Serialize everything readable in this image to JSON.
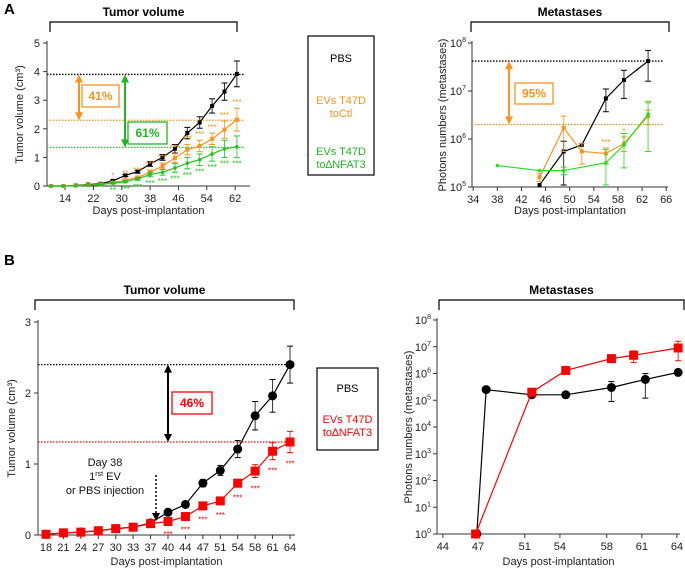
{
  "panels": [
    "A",
    "B"
  ],
  "legend_a": {
    "items": [
      {
        "lines": [
          "PBS"
        ],
        "color": "#000000"
      },
      {
        "lines": [
          "EVs T47D",
          "toCtl"
        ],
        "color": "#f7931e"
      },
      {
        "lines": [
          "EVs T47D",
          "to∆NFAT3"
        ],
        "color": "#22b522"
      }
    ]
  },
  "legend_b": {
    "items": [
      {
        "lines": [
          "PBS"
        ],
        "color": "#000000"
      },
      {
        "lines": [
          "EVs T47D",
          "to∆NFAT3"
        ],
        "color": "#ff0000"
      }
    ]
  },
  "chart_data": [
    {
      "type": "line",
      "panel": "A",
      "title": "Tumor volume",
      "xlabel": "Days post-implantation",
      "ylabel": "Tumor volume (cm³)",
      "yscale": "linear",
      "xlim": [
        8.9,
        66.2
      ],
      "ylim": [
        0,
        5
      ],
      "xticks": [
        14,
        22,
        30,
        38,
        46,
        54,
        62
      ],
      "yticks": [
        0,
        1,
        2,
        3,
        4,
        5
      ],
      "x": [
        10,
        13.5,
        17,
        20.5,
        24,
        27.5,
        31,
        34.5,
        38,
        41.5,
        45,
        48.5,
        52,
        55.5,
        59,
        62.5
      ],
      "series": [
        {
          "name": "PBS",
          "color": "#000000",
          "marker": "square",
          "values": [
            0,
            0,
            0.02,
            0.05,
            0.08,
            0.18,
            0.37,
            0.5,
            0.77,
            1.0,
            1.3,
            1.85,
            2.22,
            2.8,
            3.3,
            3.92
          ],
          "err": [
            0,
            0,
            0,
            0.01,
            0.02,
            0.03,
            0.04,
            0.05,
            0.08,
            0.1,
            0.15,
            0.2,
            0.2,
            0.25,
            0.3,
            0.45
          ]
        },
        {
          "name": "EVs T47D toCtl",
          "color": "#f7931e",
          "marker": "square",
          "values": [
            0,
            0,
            0.01,
            0.03,
            0.06,
            0.12,
            0.2,
            0.3,
            0.48,
            0.7,
            0.98,
            1.27,
            1.4,
            1.65,
            1.97,
            2.32
          ],
          "err": [
            0,
            0,
            0,
            0.01,
            0.02,
            0.03,
            0.04,
            0.05,
            0.08,
            0.1,
            0.15,
            0.18,
            0.2,
            0.2,
            0.3,
            0.4
          ],
          "stars": [
            "",
            "",
            "",
            "",
            "",
            "*",
            "**",
            "***",
            "***",
            "***",
            "***",
            "***",
            "***",
            "***",
            "***",
            "***"
          ],
          "stars_pos": "above"
        },
        {
          "name": "EVs T47D to∆NFAT3",
          "color": "#22c322",
          "marker": "dot",
          "values": [
            0,
            0,
            0.01,
            0.03,
            0.05,
            0.1,
            0.15,
            0.25,
            0.4,
            0.48,
            0.63,
            0.8,
            0.92,
            1.12,
            1.3,
            1.37
          ],
          "err": [
            0,
            0,
            0,
            0.01,
            0.02,
            0.03,
            0.04,
            0.05,
            0.08,
            0.1,
            0.15,
            0.2,
            0.2,
            0.25,
            0.3,
            0.38
          ],
          "stars": [
            "",
            "",
            "",
            "",
            "",
            "**",
            "***",
            "***",
            "***",
            "***",
            "***",
            "***",
            "***",
            "***",
            "***",
            "***"
          ],
          "stars_pos": "below"
        }
      ],
      "reference_lines": [
        {
          "value": 3.9,
          "color": "#000000"
        },
        {
          "value": 2.3,
          "color": "#f7931e"
        },
        {
          "value": 1.35,
          "color": "#22c322"
        }
      ],
      "annotations": [
        {
          "label": "41%",
          "from": 3.9,
          "to": 2.3,
          "color": "#f7931e"
        },
        {
          "label": "61%",
          "from": 3.9,
          "to": 1.35,
          "color": "#22b522"
        }
      ]
    },
    {
      "type": "line",
      "panel": "A",
      "title": "Metastases",
      "xlabel": "Days post-implantation",
      "ylabel": "Photons numbers (metastases)",
      "yscale": "log",
      "xlim": [
        33.8,
        66.3
      ],
      "ylim": [
        100000,
        100000000
      ],
      "xticks": [
        34,
        38,
        42,
        46,
        50,
        54,
        58,
        62,
        66
      ],
      "yticks_exp": [
        5,
        6,
        7,
        8
      ],
      "series": [
        {
          "name": "PBS",
          "color": "#000000",
          "marker": "square",
          "x": [
            45,
            49,
            52,
            56,
            59,
            63
          ],
          "values": [
            110000,
            550000,
            750000,
            7000000,
            17000000,
            42000000
          ],
          "range": [
            null,
            [
              110000,
              900000
            ],
            null,
            [
              3700000,
              11000000
            ],
            [
              7000000,
              27000000
            ],
            [
              16000000,
              70000000
            ]
          ]
        },
        {
          "name": "EVs T47D toCtl",
          "color": "#f7931e",
          "marker": "square",
          "x": [
            45,
            49,
            52,
            56,
            59,
            63
          ],
          "values": [
            160000,
            1700000,
            550000,
            500000,
            800000,
            3000000
          ],
          "range": [
            [
              130000,
              190000
            ],
            [
              550000,
              3000000
            ],
            [
              300000,
              800000
            ],
            [
              300000,
              650000
            ],
            [
              550000,
              1100000
            ],
            [
              2000000,
              4000000
            ]
          ],
          "stars": [
            "",
            "",
            "",
            "***",
            "*",
            "**"
          ],
          "stars_pos": "above"
        },
        {
          "name": "EVs T47D to∆NFAT3",
          "color": "#22e022",
          "marker": "dot",
          "x": [
            38,
            45,
            49,
            56,
            59,
            63
          ],
          "values": [
            280000,
            220000,
            220000,
            320000,
            750000,
            3300000
          ],
          "range": [
            null,
            null,
            [
              180000,
              260000
            ],
            [
              110000,
              600000
            ],
            [
              250000,
              1300000
            ],
            [
              550000,
              6000000
            ]
          ]
        }
      ],
      "reference_lines": [
        {
          "value": 42000000,
          "color": "#000000"
        },
        {
          "value": 2000000,
          "color": "#f7931e"
        }
      ],
      "annotations": [
        {
          "label": "95%",
          "from": 42000000,
          "to": 2000000,
          "color": "#f7931e"
        }
      ]
    },
    {
      "type": "line",
      "panel": "B",
      "title": "Tumor volume",
      "xlabel": "Days post-implantation",
      "ylabel": "Tumor volume (cm³)",
      "yscale": "linear",
      "xscale": "category",
      "ylim": [
        0,
        3
      ],
      "yticks": [
        0,
        1,
        2,
        3
      ],
      "categories": [
        "18",
        "21",
        "24",
        "27",
        "30",
        "33",
        "37",
        "40",
        "44",
        "47",
        "51",
        "54",
        "58",
        "61",
        "64"
      ],
      "series": [
        {
          "name": "PBS",
          "color": "#000000",
          "marker": "circle",
          "values": [
            0.01,
            0.03,
            0.04,
            0.06,
            0.09,
            0.11,
            0.17,
            0.32,
            0.43,
            0.73,
            0.91,
            1.21,
            1.68,
            1.96,
            2.4
          ],
          "err": [
            0,
            0.01,
            0.01,
            0.01,
            0.02,
            0.02,
            0.02,
            0.03,
            0.03,
            0.05,
            0.07,
            0.12,
            0.2,
            0.23,
            0.26
          ]
        },
        {
          "name": "EVs T47D to∆NFAT3",
          "color": "#ff0000",
          "marker": "bigsquare",
          "values": [
            0.01,
            0.03,
            0.04,
            0.06,
            0.09,
            0.11,
            0.16,
            0.19,
            0.26,
            0.41,
            0.48,
            0.73,
            0.9,
            1.18,
            1.31
          ],
          "err": [
            0,
            0.01,
            0.01,
            0.01,
            0.02,
            0.02,
            0.02,
            0.02,
            0.03,
            0.04,
            0.04,
            0.05,
            0.09,
            0.12,
            0.15
          ],
          "stars": [
            "",
            "",
            "",
            "",
            "",
            "",
            "",
            "***",
            "***",
            "***",
            "***",
            "***",
            "***",
            "***",
            "***"
          ],
          "stars_pos": "below"
        }
      ],
      "reference_lines": [
        {
          "value": 2.4,
          "color": "#000000"
        },
        {
          "value": 1.31,
          "color": "#ff0000"
        }
      ],
      "annotations": [
        {
          "label": "46%",
          "from": 2.4,
          "to": 1.31,
          "color": "#ff0000",
          "arrow_color": "#000000"
        }
      ],
      "injection_note": {
        "line1": "Day 38",
        "line2_base": "1",
        "line2_sup": "rst",
        "line2_rest": " EV",
        "line3": "or PBS injection"
      }
    },
    {
      "type": "line",
      "panel": "B",
      "title": "Metastases",
      "xlabel": "Days post-implantation",
      "ylabel": "Photons numbers (metastases)",
      "yscale": "log",
      "xlim": [
        43.5,
        64.26
      ],
      "ylim": [
        1,
        100000000
      ],
      "xticks": [
        44,
        47,
        51,
        54,
        58,
        61,
        64
      ],
      "yticks_exp": [
        0,
        1,
        2,
        3,
        4,
        5,
        6,
        7,
        8
      ],
      "series": [
        {
          "name": "PBS",
          "color": "#000000",
          "marker": "circle",
          "x": [
            46.9,
            47.7,
            51.6,
            54.5,
            58.4,
            61.3,
            64.1
          ],
          "values": [
            1,
            250000,
            160000,
            160000,
            300000,
            600000,
            1100000
          ],
          "range": [
            null,
            null,
            null,
            null,
            [
              90000,
              500000
            ],
            [
              120000,
              1000000
            ],
            null
          ]
        },
        {
          "name": "EVs T47D to∆NFAT3",
          "color": "#ff0000",
          "marker": "bigsquare",
          "x": [
            46.8,
            51.6,
            54.5,
            58.4,
            60.3,
            64.1
          ],
          "values": [
            1,
            200000,
            1300000,
            3600000,
            4800000,
            9000000
          ],
          "range": [
            null,
            null,
            null,
            null,
            [
              2600000,
              7000000
            ],
            [
              3000000,
              16000000
            ]
          ]
        }
      ],
      "reference_lines": [],
      "annotations": []
    }
  ]
}
